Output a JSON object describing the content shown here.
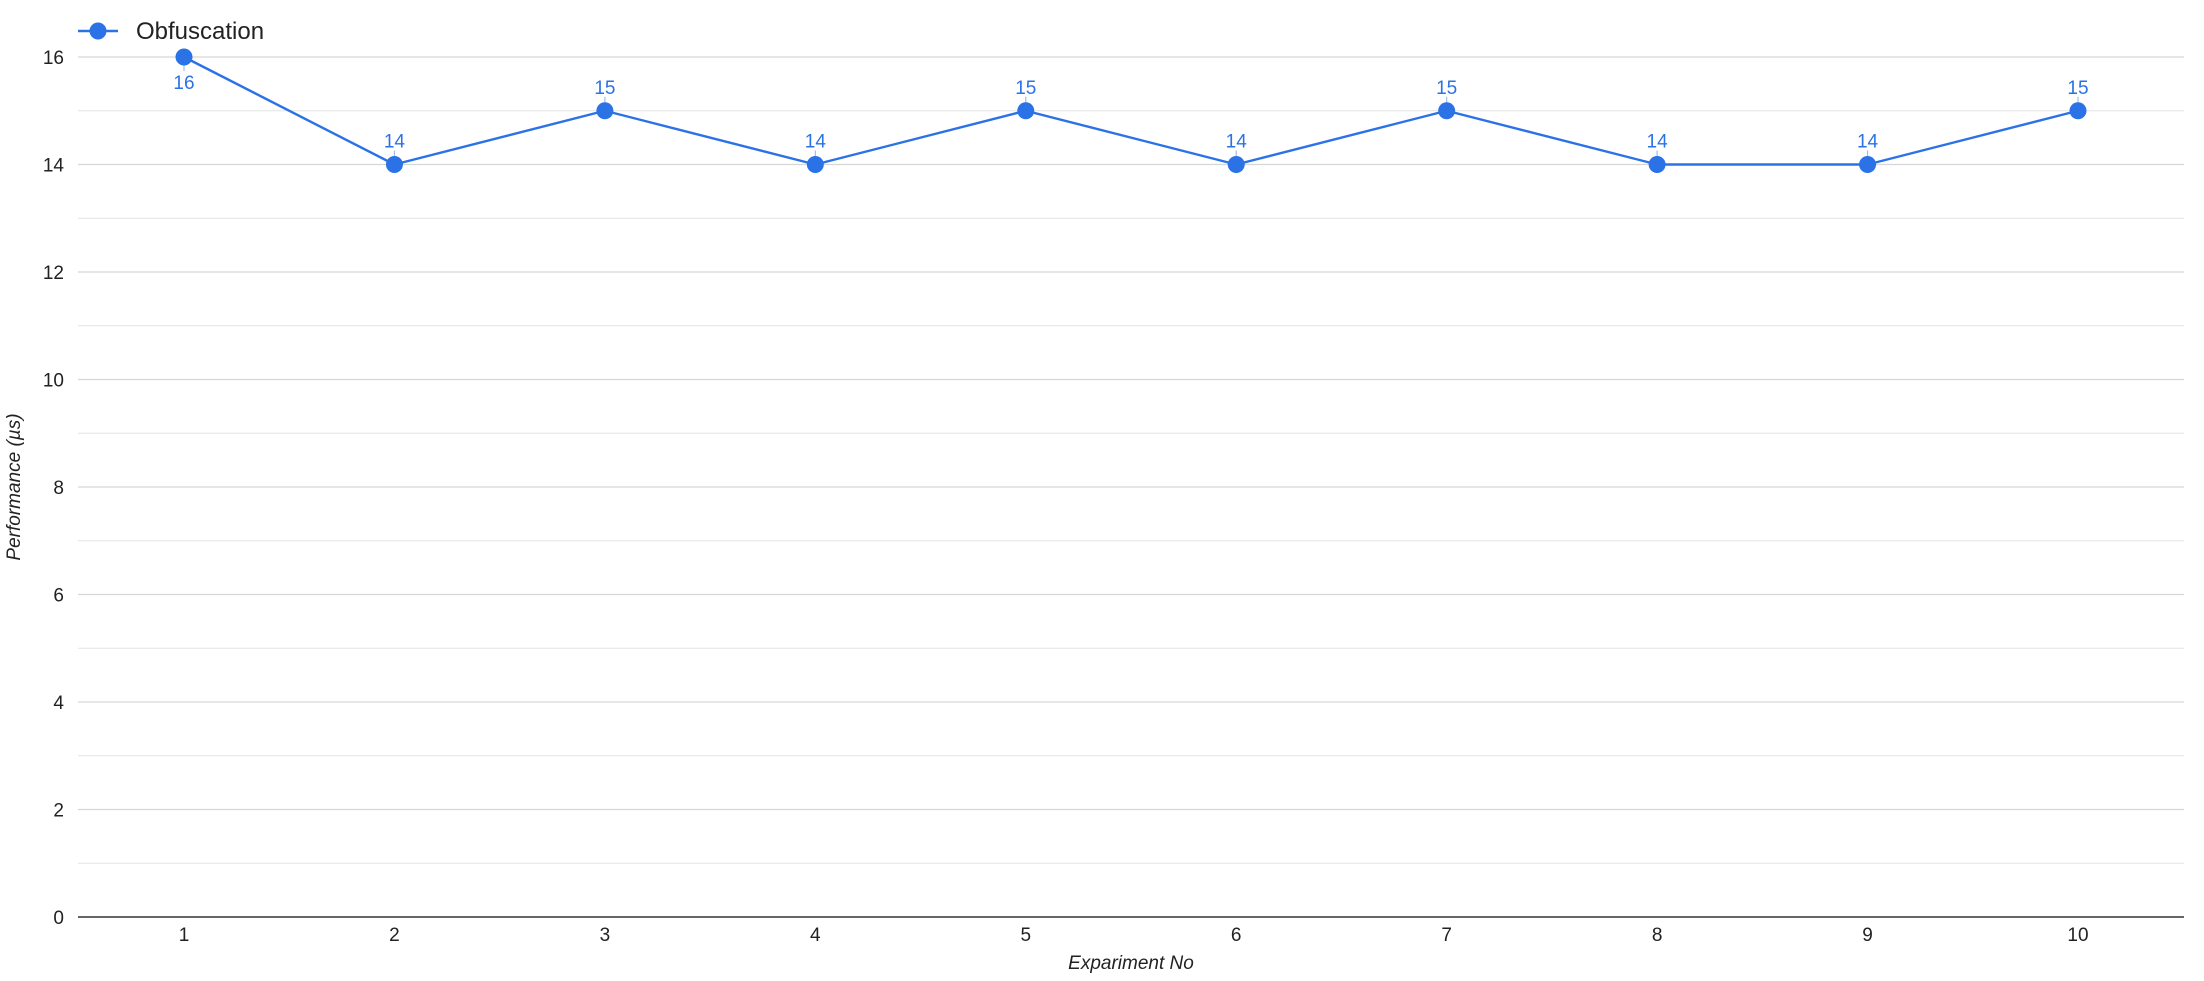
{
  "chart_data": {
    "type": "line",
    "title": "",
    "xlabel": "Expariment No",
    "ylabel": "Performance (µs)",
    "categories": [
      "1",
      "2",
      "3",
      "4",
      "5",
      "6",
      "7",
      "8",
      "9",
      "10"
    ],
    "ylim": [
      0,
      16
    ],
    "yticks": [
      "0",
      "2",
      "4",
      "6",
      "8",
      "10",
      "12",
      "14",
      "16"
    ],
    "minor_grid": true,
    "legend_position": "top-left",
    "series": [
      {
        "name": "Obfuscation",
        "color": "#2B72E6",
        "values": [
          16,
          14,
          15,
          14,
          15,
          14,
          15,
          14,
          14,
          15
        ],
        "data_labels": [
          "16",
          "14",
          "15",
          "14",
          "15",
          "14",
          "15",
          "14",
          "14",
          "15"
        ]
      }
    ]
  }
}
